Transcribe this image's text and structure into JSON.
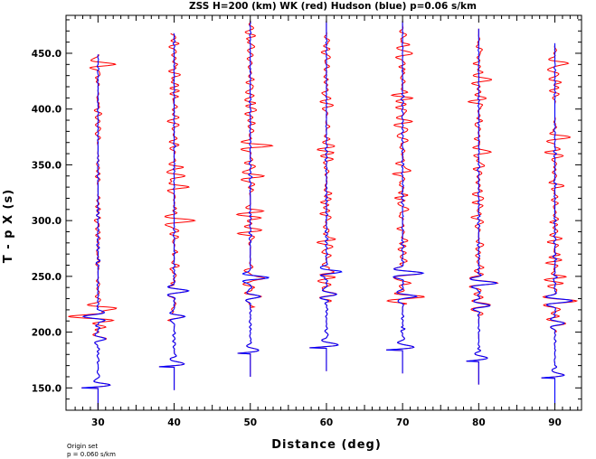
{
  "chart_data": {
    "type": "line",
    "title": "ZSS H=200 (km) WK (red) Hudson (blue) p=0.06 s/km",
    "xlabel": "Distance (deg)",
    "ylabel": "T - p X (s)",
    "xlim": [
      25.8,
      93.5
    ],
    "ylim": [
      130,
      484
    ],
    "x_ticks": [
      30,
      40,
      50,
      60,
      70,
      80,
      90
    ],
    "x_tick_labels": [
      "30",
      "40",
      "50",
      "60",
      "70",
      "80",
      "90"
    ],
    "y_ticks": [
      150,
      200,
      250,
      300,
      350,
      400,
      450
    ],
    "y_tick_labels": [
      "150.0",
      "200.0",
      "250.0",
      "300.0",
      "350.0",
      "400.0",
      "450.0"
    ],
    "grid": false,
    "series": [
      {
        "name": "WK",
        "color": "#ff0000"
      },
      {
        "name": "Hudson",
        "color": "#0000ff"
      }
    ],
    "traces": [
      {
        "distance": 30,
        "start": 131,
        "end": 449,
        "onset": 151,
        "onset_amp": 2.8,
        "wk_noise": 0.7,
        "wk_events": [
          [
            440,
            2.6
          ],
          [
            221,
            3.0
          ],
          [
            214,
            -2.5
          ]
        ],
        "hud_events": [
          [
            214,
            -2.3
          ],
          [
            194,
            1.2
          ]
        ]
      },
      {
        "distance": 40,
        "start": 148,
        "end": 468,
        "onset": 170,
        "onset_amp": 2.7,
        "wk_noise": 1.0,
        "wk_events": [
          [
            300,
            3.3
          ],
          [
            330,
            2.0
          ],
          [
            340,
            1.5
          ]
        ],
        "hud_events": [
          [
            237,
            2.3
          ],
          [
            214,
            1.6
          ]
        ]
      },
      {
        "distance": 50,
        "start": 160,
        "end": 479,
        "onset": 182,
        "onset_amp": 2.3,
        "wk_noise": 1.2,
        "wk_events": [
          [
            367,
            2.5
          ],
          [
            308,
            1.5
          ]
        ],
        "hud_events": [
          [
            249,
            2.8
          ],
          [
            232,
            1.6
          ]
        ]
      },
      {
        "distance": 60,
        "start": 165,
        "end": 479,
        "onset": 187,
        "onset_amp": 2.8,
        "wk_noise": 1.2,
        "wk_events": [
          [
            460,
            1.8
          ],
          [
            323,
            1.2
          ]
        ],
        "hud_events": [
          [
            254,
            2.3
          ],
          [
            234,
            1.5
          ]
        ]
      },
      {
        "distance": 70,
        "start": 163,
        "end": 479,
        "onset": 185,
        "onset_amp": 2.8,
        "wk_noise": 1.2,
        "wk_events": [
          [
            450,
            1.8
          ],
          [
            345,
            1.2
          ],
          [
            310,
            1.0
          ]
        ],
        "hud_events": [
          [
            253,
            3.2
          ],
          [
            232,
            2.2
          ]
        ]
      },
      {
        "distance": 80,
        "start": 153,
        "end": 472,
        "onset": 175,
        "onset_amp": 2.2,
        "wk_noise": 1.0,
        "wk_events": [
          [
            426,
            2.2
          ],
          [
            361,
            1.6
          ]
        ],
        "hud_events": [
          [
            244,
            2.8
          ],
          [
            224,
            1.8
          ]
        ]
      },
      {
        "distance": 90,
        "start": 135,
        "end": 459,
        "onset": 160,
        "onset_amp": 2.3,
        "wk_noise": 1.0,
        "wk_events": [
          [
            441,
            2.5
          ],
          [
            375,
            2.3
          ],
          [
            420,
            1.0
          ]
        ],
        "hud_events": [
          [
            228,
            2.8
          ],
          [
            208,
            1.5
          ]
        ]
      }
    ]
  },
  "footnote": {
    "line1": "Origin set",
    "line2": "p = 0.060 s/km"
  }
}
